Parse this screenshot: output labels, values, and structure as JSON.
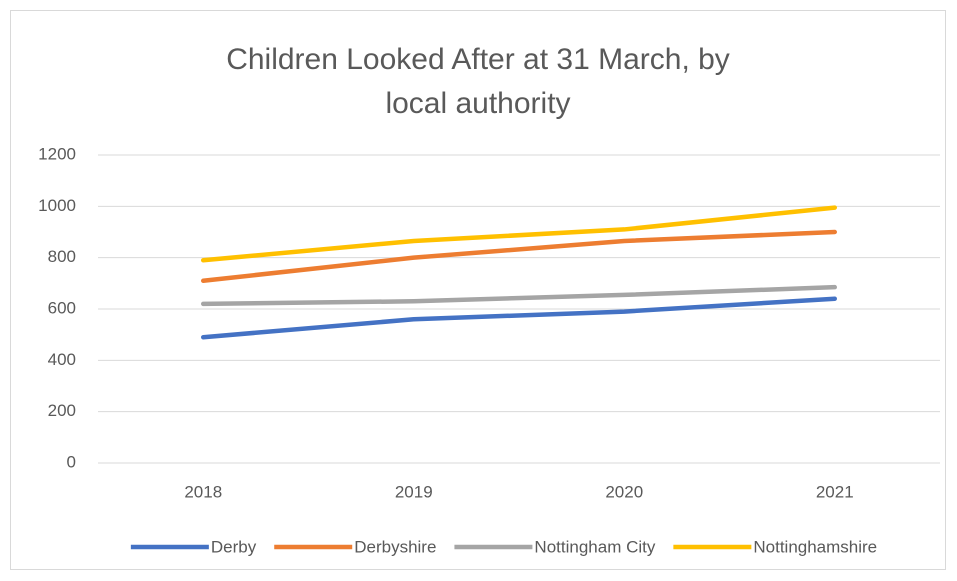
{
  "chart_data": {
    "type": "line",
    "title": "Children Looked After at 31 March, by local authority",
    "categories": [
      "2018",
      "2019",
      "2020",
      "2021"
    ],
    "series": [
      {
        "name": "Derby",
        "color": "#4472c4",
        "values": [
          490,
          560,
          590,
          640
        ]
      },
      {
        "name": "Derbyshire",
        "color": "#ed7d31",
        "values": [
          710,
          800,
          865,
          900
        ]
      },
      {
        "name": "Nottingham City",
        "color": "#a5a5a5",
        "values": [
          620,
          630,
          655,
          685
        ]
      },
      {
        "name": "Nottinghamshire",
        "color": "#ffc000",
        "values": [
          790,
          865,
          910,
          995
        ]
      }
    ],
    "ylim": [
      0,
      1200
    ],
    "yticks": [
      0,
      200,
      400,
      600,
      800,
      1000,
      1200
    ],
    "grid": true,
    "legend": "bottom"
  }
}
